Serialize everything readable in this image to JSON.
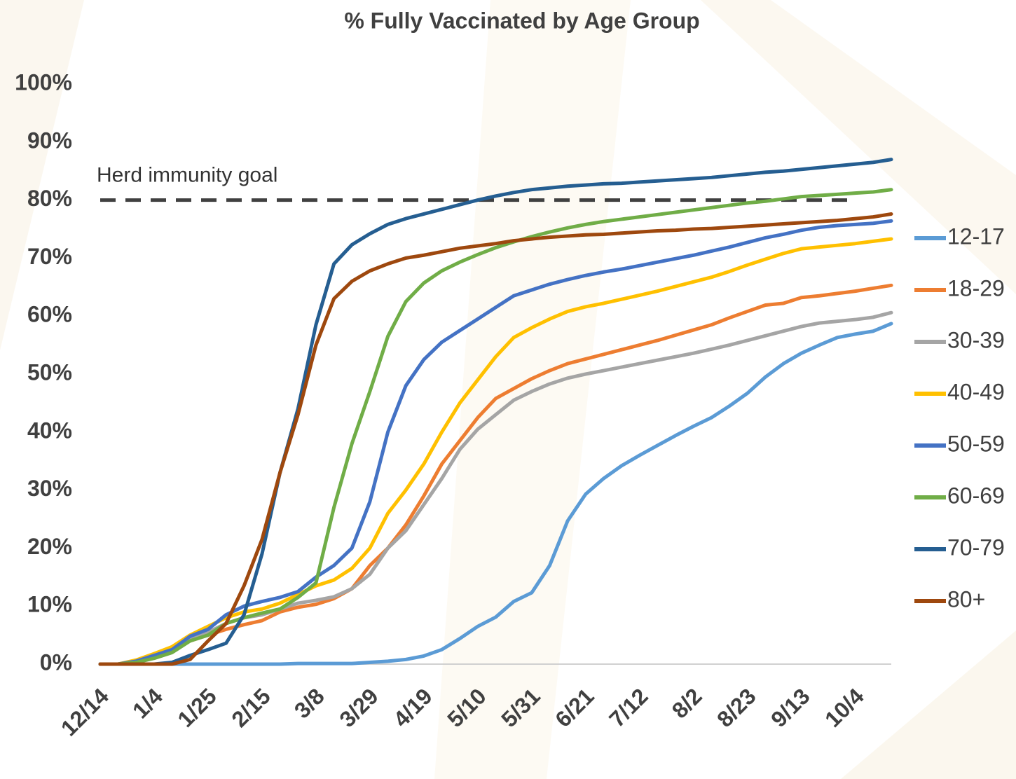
{
  "chart_data": {
    "type": "line",
    "title": "% Fully Vaccinated by Age Group",
    "categories": [
      "12/14",
      null,
      null,
      "1/4",
      null,
      null,
      "1/25",
      null,
      null,
      "2/15",
      null,
      null,
      "3/8",
      null,
      null,
      "3/29",
      null,
      null,
      "4/19",
      null,
      null,
      "5/10",
      null,
      null,
      "5/31",
      null,
      null,
      "6/21",
      null,
      null,
      "7/12",
      null,
      null,
      "8/2",
      null,
      null,
      "8/23",
      null,
      null,
      "9/13",
      null,
      null,
      "10/4",
      null,
      null
    ],
    "series": [
      {
        "name": "12-17",
        "color": "#5b9bd5",
        "values": [
          0,
          0,
          0,
          0,
          0,
          0,
          0,
          0,
          0,
          0,
          0,
          0.1,
          0.1,
          0.1,
          0.1,
          0.3,
          0.5,
          0.8,
          1.4,
          2.5,
          4.4,
          6.5,
          8.1,
          10.8,
          12.3,
          17,
          24.7,
          29.3,
          32,
          34.2,
          36,
          37.7,
          39.4,
          41,
          42.5,
          44.5,
          46.7,
          49.5,
          51.8,
          53.6,
          55,
          56.3,
          56.9,
          57.4,
          58.7
        ]
      },
      {
        "name": "18-29",
        "color": "#ed7d31",
        "values": [
          0,
          0,
          0.5,
          1.5,
          2.5,
          4,
          5,
          6,
          6.8,
          7.5,
          9,
          9.8,
          10.3,
          11.3,
          13,
          17,
          20,
          24,
          29,
          34.5,
          38.5,
          42.5,
          45.8,
          47.5,
          49.2,
          50.6,
          51.8,
          52.6,
          53.4,
          54.2,
          55,
          55.8,
          56.7,
          57.6,
          58.5,
          59.7,
          60.8,
          61.9,
          62.2,
          63.2,
          63.5,
          63.9,
          64.3,
          64.8,
          65.3
        ]
      },
      {
        "name": "30-39",
        "color": "#a5a5a5",
        "values": [
          0,
          0,
          0.5,
          1.5,
          2.8,
          4.5,
          5.5,
          7,
          8,
          8.5,
          9.5,
          10.5,
          11,
          11.6,
          13,
          15.5,
          20,
          23,
          27.5,
          32,
          37,
          40.5,
          43,
          45.5,
          47,
          48.3,
          49.3,
          50,
          50.6,
          51.2,
          51.8,
          52.4,
          53,
          53.6,
          54.3,
          55,
          55.8,
          56.6,
          57.4,
          58.2,
          58.8,
          59.1,
          59.4,
          59.8,
          60.6
        ]
      },
      {
        "name": "40-49",
        "color": "#ffc000",
        "values": [
          0,
          0,
          0.7,
          1.8,
          3,
          5,
          6.5,
          8,
          9,
          9.5,
          10.5,
          12,
          13.5,
          14.5,
          16.5,
          20,
          26,
          30,
          34.5,
          40,
          45,
          49,
          53,
          56.3,
          58,
          59.5,
          60.8,
          61.6,
          62.2,
          62.9,
          63.6,
          64.3,
          65.1,
          65.9,
          66.7,
          67.7,
          68.8,
          69.8,
          70.8,
          71.6,
          71.9,
          72.2,
          72.5,
          72.9,
          73.3
        ]
      },
      {
        "name": "50-59",
        "color": "#4472c4",
        "values": [
          0,
          0,
          0.5,
          1.5,
          2.5,
          4.8,
          6,
          8.5,
          10,
          10.8,
          11.5,
          12.5,
          15,
          17,
          20,
          28,
          40,
          48,
          52.5,
          55.5,
          57.5,
          59.5,
          61.5,
          63.5,
          64.5,
          65.5,
          66.3,
          67,
          67.6,
          68.1,
          68.7,
          69.3,
          69.9,
          70.5,
          71.2,
          71.9,
          72.7,
          73.5,
          74.1,
          74.8,
          75.3,
          75.6,
          75.8,
          76,
          76.4
        ]
      },
      {
        "name": "60-69",
        "color": "#70ad47",
        "values": [
          0,
          0,
          0.3,
          1,
          2,
          4,
          5,
          7,
          8,
          8.8,
          9.5,
          11.5,
          14,
          27,
          38,
          47,
          56.5,
          62.5,
          65.7,
          67.8,
          69.3,
          70.6,
          71.8,
          72.8,
          73.7,
          74.5,
          75.2,
          75.8,
          76.3,
          76.7,
          77.1,
          77.5,
          77.9,
          78.3,
          78.7,
          79.1,
          79.5,
          79.8,
          80.2,
          80.6,
          80.8,
          81,
          81.2,
          81.4,
          81.8
        ]
      },
      {
        "name": "70-79",
        "color": "#255e91",
        "values": [
          0,
          0,
          0,
          0,
          0.3,
          1.5,
          2.5,
          3.6,
          8.5,
          19,
          33,
          44,
          58.5,
          69,
          72.3,
          74.2,
          75.8,
          76.8,
          77.6,
          78.4,
          79.2,
          80,
          80.7,
          81.3,
          81.8,
          82.1,
          82.4,
          82.6,
          82.8,
          82.9,
          83.1,
          83.3,
          83.5,
          83.7,
          83.9,
          84.2,
          84.5,
          84.8,
          85,
          85.3,
          85.6,
          85.9,
          86.2,
          86.5,
          87
        ]
      },
      {
        "name": "80+",
        "color": "#9e480e",
        "values": [
          0,
          0,
          0,
          0,
          0,
          0.8,
          4,
          7,
          13.5,
          21.5,
          33,
          43,
          55,
          63,
          66,
          67.8,
          69,
          70,
          70.5,
          71.1,
          71.7,
          72.1,
          72.5,
          73,
          73.3,
          73.6,
          73.8,
          74,
          74.1,
          74.3,
          74.5,
          74.7,
          74.8,
          75,
          75.1,
          75.3,
          75.5,
          75.7,
          75.9,
          76.1,
          76.3,
          76.5,
          76.8,
          77.1,
          77.6
        ]
      }
    ],
    "reference_line": {
      "value": 80,
      "label": "Herd immunity goal"
    },
    "ylim": [
      0,
      100
    ],
    "yticks": [
      {
        "value": 0,
        "label": "0%"
      },
      {
        "value": 10,
        "label": "10%"
      },
      {
        "value": 20,
        "label": "20%"
      },
      {
        "value": 30,
        "label": "30%"
      },
      {
        "value": 40,
        "label": "40%"
      },
      {
        "value": 50,
        "label": "50%"
      },
      {
        "value": 60,
        "label": "60%"
      },
      {
        "value": 70,
        "label": "70%"
      },
      {
        "value": 80,
        "label": "80%"
      },
      {
        "value": 90,
        "label": "90%"
      },
      {
        "value": 100,
        "label": "100%"
      }
    ],
    "legend": "right"
  }
}
